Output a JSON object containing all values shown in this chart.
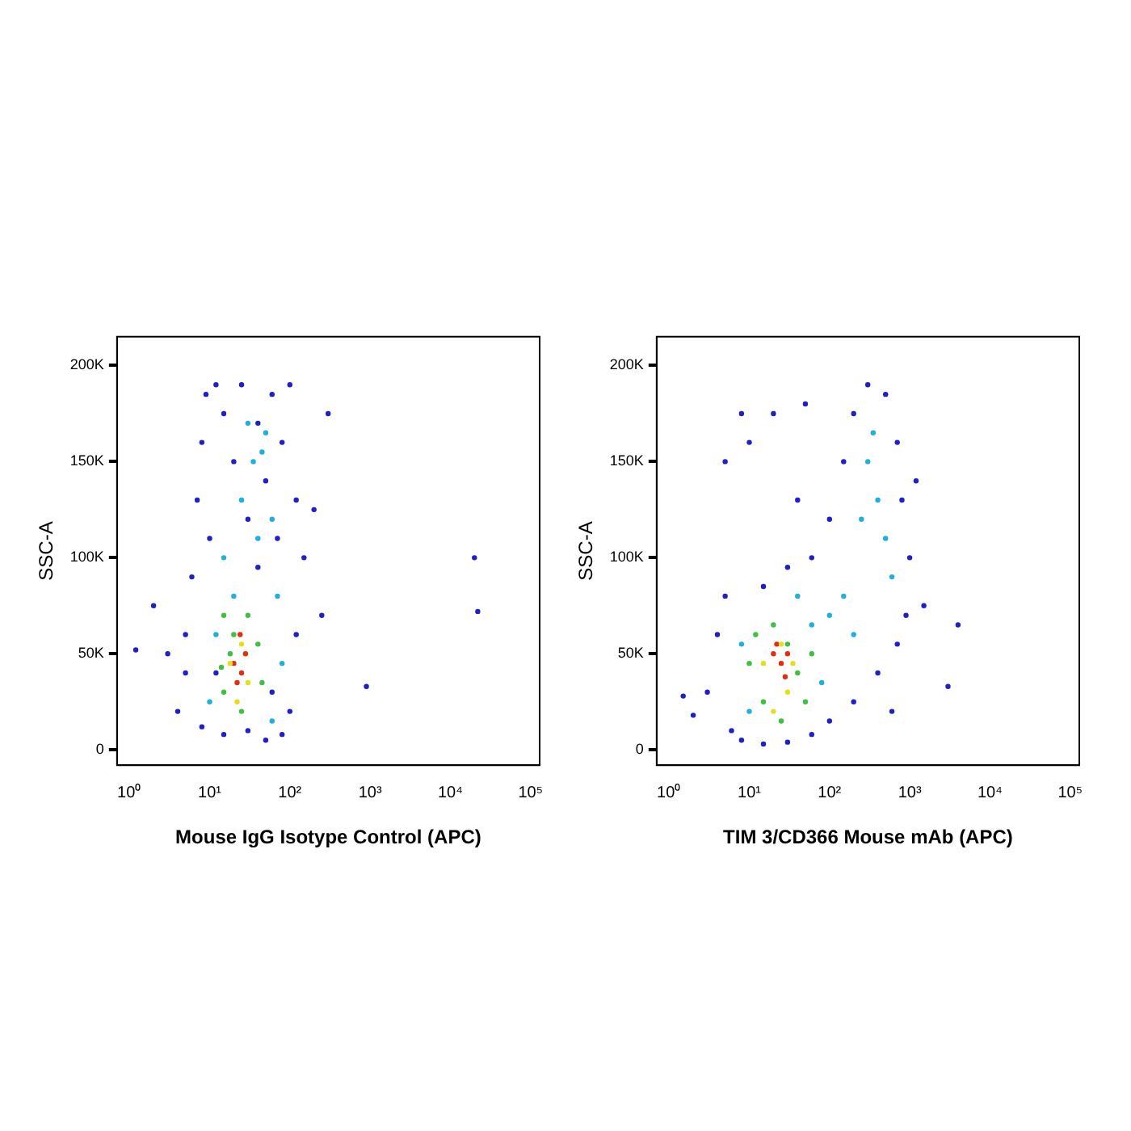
{
  "chart_data": [
    {
      "type": "scatter",
      "xlabel": "Mouse IgG Isotype Control (APC)",
      "ylabel": "SSC-A",
      "log": "x",
      "grid": false,
      "legend": false,
      "marker": "circle",
      "xlim": [
        0.7,
        130000
      ],
      "ylim": [
        -8000,
        215000
      ],
      "xticks": [
        {
          "value": 1,
          "label": "10⁰"
        },
        {
          "value": 10,
          "label": "10¹"
        },
        {
          "value": 100,
          "label": "10²"
        },
        {
          "value": 1000,
          "label": "10³"
        },
        {
          "value": 10000,
          "label": "10⁴"
        },
        {
          "value": 100000,
          "label": "10⁵"
        }
      ],
      "yticks": [
        0,
        {
          "value": 50000,
          "label": "50K"
        },
        {
          "value": 100000,
          "label": "100K"
        },
        {
          "value": 150000,
          "label": "150K"
        },
        {
          "value": 200000,
          "label": "200K"
        }
      ],
      "series": [
        {
          "color": "#2020c8",
          "x": [
            4,
            5,
            6,
            7,
            8,
            9,
            12,
            15,
            20,
            25,
            30,
            40,
            50,
            60,
            80,
            100,
            120,
            150,
            120,
            100,
            80,
            50,
            30,
            15,
            8,
            5,
            3,
            2,
            1.2,
            300,
            250,
            900,
            20000,
            22000,
            200,
            10,
            40,
            70,
            60,
            12
          ],
          "values": [
            20000,
            60000,
            90000,
            130000,
            160000,
            185000,
            190000,
            175000,
            150000,
            190000,
            120000,
            170000,
            140000,
            185000,
            160000,
            190000,
            130000,
            100000,
            60000,
            20000,
            8000,
            5000,
            10000,
            8000,
            12000,
            40000,
            50000,
            75000,
            52000,
            175000,
            70000,
            33000,
            100000,
            72000,
            125000,
            110000,
            95000,
            110000,
            30000,
            40000
          ]
        },
        {
          "color": "#20b0e0",
          "x": [
            15,
            25,
            35,
            50,
            60,
            40,
            20,
            70,
            12,
            80,
            45,
            30,
            10,
            60
          ],
          "values": [
            100000,
            130000,
            150000,
            165000,
            120000,
            110000,
            80000,
            80000,
            60000,
            45000,
            155000,
            170000,
            25000,
            15000
          ]
        },
        {
          "color": "#40c040",
          "x": [
            15,
            20,
            30,
            40,
            14,
            15,
            25,
            45,
            18
          ],
          "values": [
            70000,
            60000,
            70000,
            55000,
            43000,
            30000,
            20000,
            35000,
            50000
          ]
        },
        {
          "color": "#e0e020",
          "x": [
            18,
            25,
            30,
            22
          ],
          "values": [
            45000,
            55000,
            35000,
            25000
          ]
        },
        {
          "color": "#e03010",
          "x": [
            20,
            25,
            28,
            22,
            24
          ],
          "values": [
            45000,
            40000,
            50000,
            35000,
            60000
          ]
        }
      ]
    },
    {
      "type": "scatter",
      "xlabel": "TIM 3/CD366 Mouse mAb (APC)",
      "ylabel": "SSC-A",
      "log": "x",
      "grid": false,
      "legend": false,
      "marker": "circle",
      "xlim": [
        0.7,
        130000
      ],
      "ylim": [
        -8000,
        215000
      ],
      "xticks": [
        {
          "value": 1,
          "label": "10⁰"
        },
        {
          "value": 10,
          "label": "10¹"
        },
        {
          "value": 100,
          "label": "10²"
        },
        {
          "value": 1000,
          "label": "10³"
        },
        {
          "value": 10000,
          "label": "10⁴"
        },
        {
          "value": 100000,
          "label": "10⁵"
        }
      ],
      "yticks": [
        0,
        {
          "value": 50000,
          "label": "50K"
        },
        {
          "value": 100000,
          "label": "100K"
        },
        {
          "value": 150000,
          "label": "150K"
        },
        {
          "value": 200000,
          "label": "200K"
        }
      ],
      "series": [
        {
          "color": "#2020c8",
          "x": [
            3,
            4,
            5,
            2,
            1.5,
            6,
            8,
            15,
            30,
            60,
            100,
            200,
            400,
            700,
            900,
            1000,
            800,
            700,
            500,
            300,
            200,
            150,
            100,
            60,
            30,
            15,
            10,
            8,
            20,
            50,
            4000,
            3000,
            1200,
            40,
            5,
            600,
            1500
          ],
          "values": [
            30000,
            60000,
            80000,
            18000,
            28000,
            10000,
            5000,
            3000,
            4000,
            8000,
            15000,
            25000,
            40000,
            55000,
            70000,
            100000,
            130000,
            160000,
            185000,
            190000,
            175000,
            150000,
            120000,
            100000,
            95000,
            85000,
            160000,
            175000,
            175000,
            180000,
            65000,
            33000,
            140000,
            130000,
            150000,
            20000,
            75000
          ]
        },
        {
          "color": "#20b0e0",
          "x": [
            300,
            400,
            500,
            250,
            600,
            150,
            100,
            60,
            200,
            350,
            8,
            10,
            80,
            40
          ],
          "values": [
            150000,
            130000,
            110000,
            120000,
            90000,
            80000,
            70000,
            65000,
            60000,
            165000,
            55000,
            20000,
            35000,
            80000
          ]
        },
        {
          "color": "#40c040",
          "x": [
            12,
            20,
            30,
            40,
            15,
            25,
            50,
            10,
            60
          ],
          "values": [
            60000,
            65000,
            55000,
            40000,
            25000,
            15000,
            25000,
            45000,
            50000
          ]
        },
        {
          "color": "#e0e020",
          "x": [
            15,
            25,
            30,
            20,
            35
          ],
          "values": [
            45000,
            55000,
            30000,
            20000,
            45000
          ]
        },
        {
          "color": "#e03010",
          "x": [
            20,
            25,
            28,
            22,
            30
          ],
          "values": [
            50000,
            45000,
            38000,
            55000,
            50000
          ]
        }
      ]
    }
  ]
}
